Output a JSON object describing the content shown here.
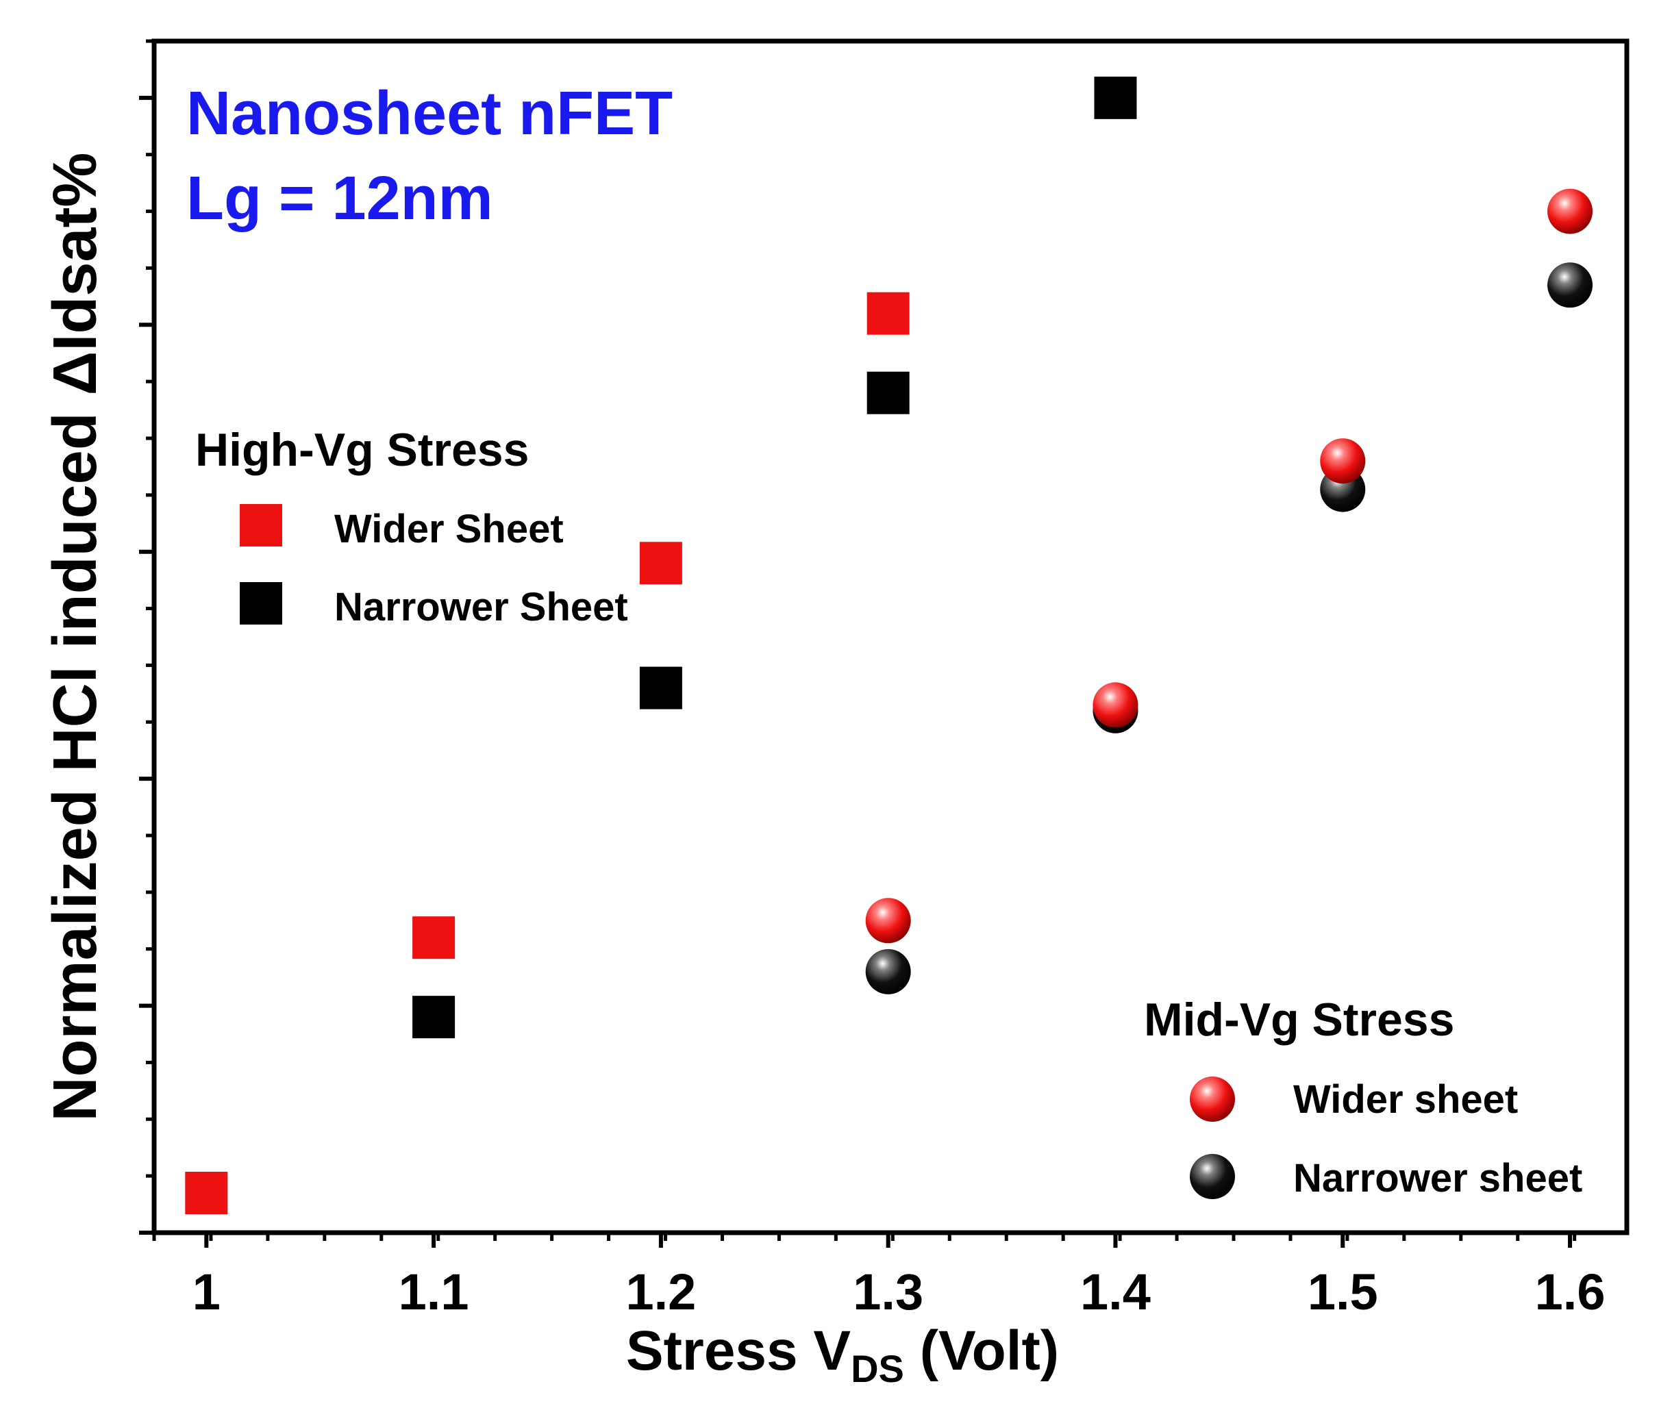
{
  "chart_data": {
    "type": "scatter",
    "title": "",
    "xlabel": "Stress V",
    "xlabel_sub": "DS",
    "xlabel_suffix": " (Volt)",
    "ylabel": "Normalized HCl induced ΔIdsat%",
    "xlim": [
      0.977,
      1.625
    ],
    "ylim": [
      0,
      10.5
    ],
    "x_ticks": [
      1.0,
      1.1,
      1.2,
      1.3,
      1.4,
      1.5,
      1.6
    ],
    "x_tick_labels": [
      "1",
      "1.1",
      "1.2",
      "1.3",
      "1.4",
      "1.5",
      "1.6"
    ],
    "y_tick_labels_shown": false,
    "annotations": [
      "Nanosheet nFET",
      "Lg = 12nm"
    ],
    "legend_groups": [
      {
        "title": "High-Vg Stress",
        "position": "middle-left"
      },
      {
        "title": "Mid-Vg Stress",
        "position": "bottom-right"
      }
    ],
    "series": [
      {
        "name": "Wider Sheet",
        "group": "High-Vg Stress",
        "marker": "square",
        "color": "#ee1111",
        "x": [
          1.0,
          1.1,
          1.2,
          1.3
        ],
        "y": [
          0.35,
          2.6,
          5.9,
          8.1
        ]
      },
      {
        "name": "Narrower Sheet",
        "group": "High-Vg Stress",
        "marker": "square",
        "color": "#000000",
        "x": [
          1.1,
          1.2,
          1.3,
          1.4
        ],
        "y": [
          1.9,
          4.8,
          7.4,
          10.0
        ]
      },
      {
        "name": "Wider sheet",
        "group": "Mid-Vg Stress",
        "marker": "sphere",
        "color": "#ee1111",
        "x": [
          1.3,
          1.4,
          1.5,
          1.6
        ],
        "y": [
          2.75,
          4.65,
          6.8,
          9.0
        ]
      },
      {
        "name": "Narrower sheet",
        "group": "Mid-Vg Stress",
        "marker": "sphere",
        "color": "#000000",
        "x": [
          1.3,
          1.4,
          1.5,
          1.6
        ],
        "y": [
          2.3,
          4.6,
          6.55,
          8.35
        ]
      }
    ],
    "colors": {
      "annotation": "#1a1aee",
      "axis": "#000000"
    }
  }
}
